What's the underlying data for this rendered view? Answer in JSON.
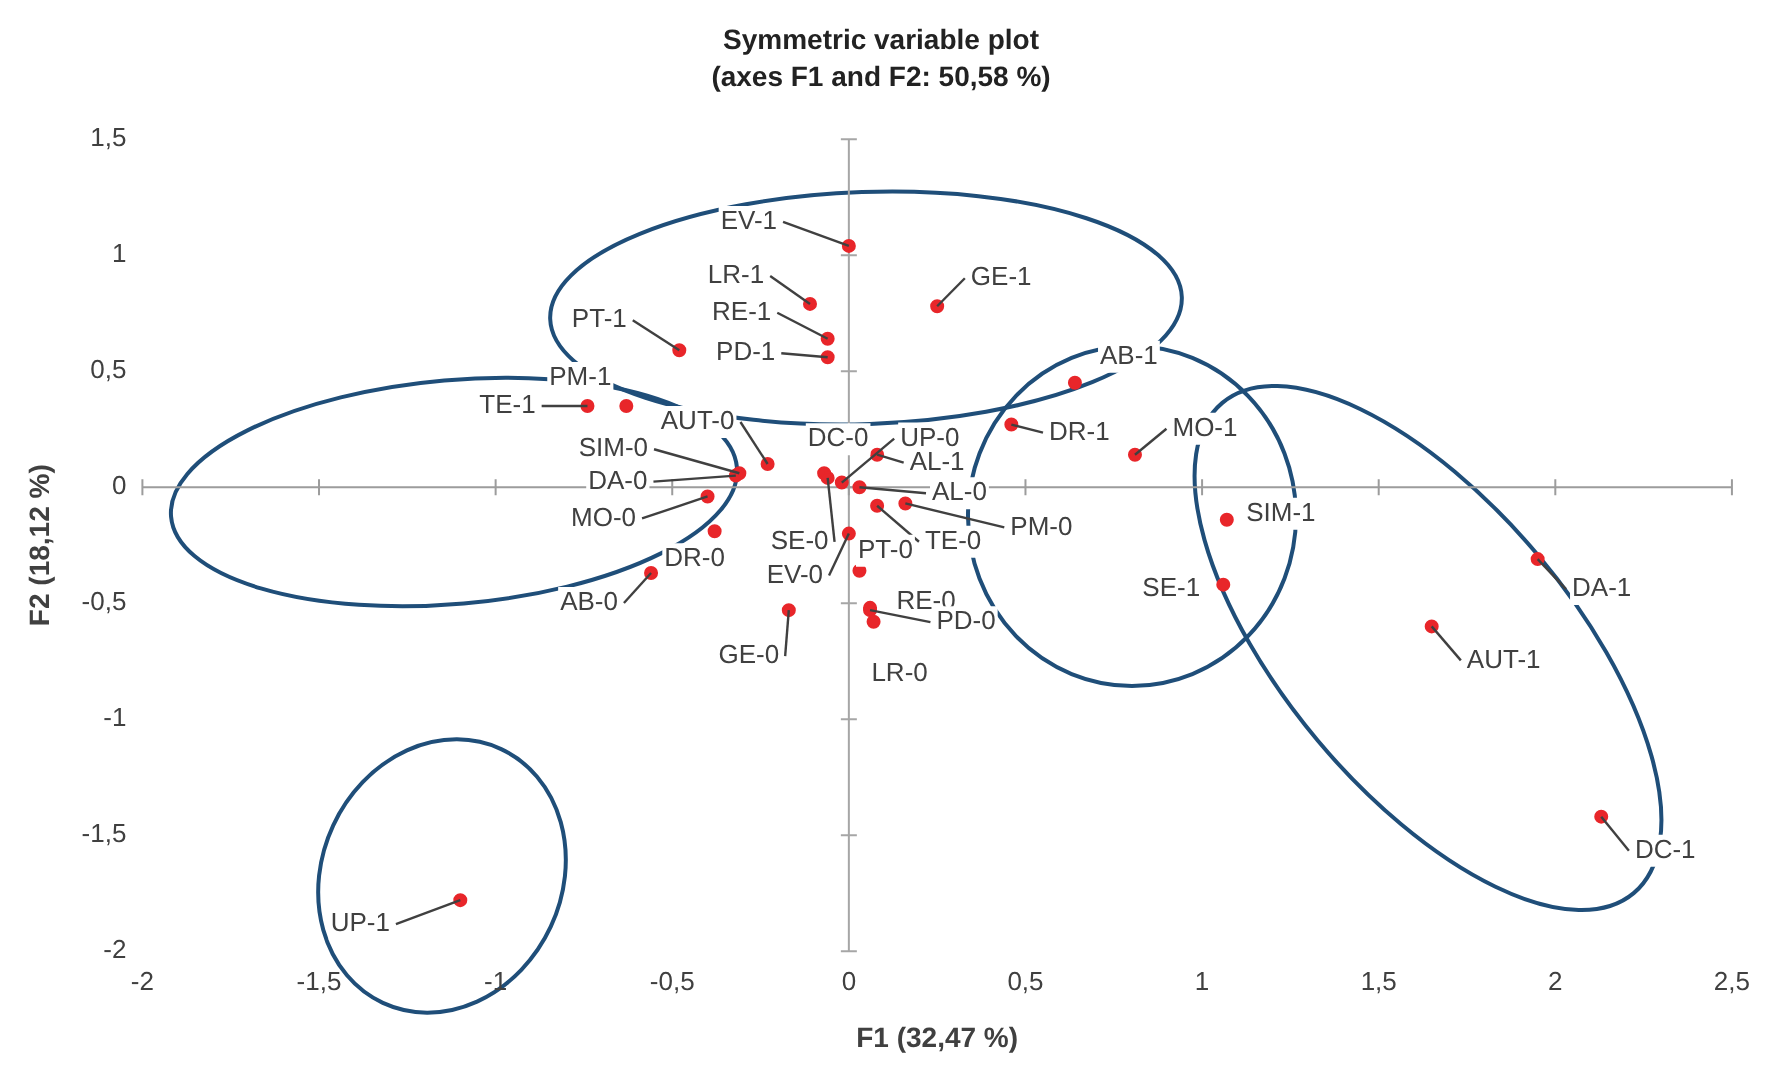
{
  "chart_data": {
    "type": "scatter",
    "title": "Symmetric variable plot",
    "subtitle": "(axes F1 and F2: 50,58 %)",
    "xlabel": "F1 (32,47 %)",
    "ylabel": "F2 (18,12 %)",
    "xlim": [
      -2,
      2.5
    ],
    "xticks": [
      -2,
      {
        "value": -1.5,
        "label": "-1,5"
      },
      -1,
      {
        "value": -0.5,
        "label": "-0,5"
      },
      0,
      {
        "value": 0.5,
        "label": "0,5"
      },
      1,
      {
        "value": 1.5,
        "label": "1,5"
      },
      2,
      {
        "value": 2.5,
        "label": "2,5"
      }
    ],
    "ylim": [
      -2,
      1.5
    ],
    "yticks": [
      -2,
      {
        "value": -1.5,
        "label": "-1,5"
      },
      -1,
      {
        "value": -0.5,
        "label": "-0,5"
      },
      0,
      {
        "value": 0.5,
        "label": "0,5"
      },
      1,
      {
        "value": 1.5,
        "label": "1,5"
      }
    ],
    "grid": false,
    "legend": false,
    "marker": "circle",
    "ref_lines": [
      {
        "axis": "x",
        "value": 0,
        "color": "#a6a6a6"
      },
      {
        "axis": "y",
        "value": 0,
        "color": "#9c9c9c"
      }
    ],
    "series": [
      {
        "color": "#e8262a",
        "x": [
          0,
          0.25,
          -0.11,
          -0.06,
          -0.06,
          -0.48,
          -0.63,
          -0.74,
          -0.23,
          -0.31,
          -0.32,
          -0.4,
          -0.38,
          -0.56,
          -0.07,
          -0.06,
          -0.02,
          0.08,
          0.03,
          0.08,
          0.16,
          0,
          0.03,
          0.06,
          0.06,
          0.07,
          -0.17,
          0.64,
          0.46,
          0.81,
          1.07,
          1.06,
          1.95,
          1.65,
          2.13,
          -1.1
        ],
        "values": [
          1.04,
          0.78,
          0.79,
          0.64,
          0.56,
          0.59,
          0.35,
          0.35,
          0.1,
          0.06,
          0.05,
          -0.04,
          -0.19,
          -0.37,
          0.06,
          0.04,
          0.02,
          0.14,
          0,
          -0.08,
          -0.07,
          -0.2,
          -0.36,
          -0.52,
          -0.53,
          -0.58,
          -0.53,
          0.45,
          0.27,
          0.14,
          -0.14,
          -0.42,
          -0.31,
          -0.6,
          -1.42,
          -1.78
        ]
      }
    ],
    "annotations": [
      {
        "text": "EV-1",
        "x": 0,
        "y": 1.04
      },
      {
        "text": "GE-1",
        "x": 0.25,
        "y": 0.78
      },
      {
        "text": "LR-1",
        "x": -0.11,
        "y": 0.79
      },
      {
        "text": "RE-1",
        "x": -0.06,
        "y": 0.64
      },
      {
        "text": "PD-1",
        "x": -0.06,
        "y": 0.56
      },
      {
        "text": "PT-1",
        "x": -0.48,
        "y": 0.59
      },
      {
        "text": "PM-1",
        "x": -0.63,
        "y": 0.35
      },
      {
        "text": "TE-1",
        "x": -0.74,
        "y": 0.35
      },
      {
        "text": "AUT-0",
        "x": -0.23,
        "y": 0.1
      },
      {
        "text": "SIM-0",
        "x": -0.31,
        "y": 0.06
      },
      {
        "text": "DA-0",
        "x": -0.32,
        "y": 0.05
      },
      {
        "text": "MO-0",
        "x": -0.4,
        "y": -0.04
      },
      {
        "text": "DR-0",
        "x": -0.38,
        "y": -0.19
      },
      {
        "text": "AB-0",
        "x": -0.56,
        "y": -0.37
      },
      {
        "text": "DC-0",
        "x": -0.07,
        "y": 0.06
      },
      {
        "text": "SE-0",
        "x": -0.06,
        "y": 0.04
      },
      {
        "text": "UP-0",
        "x": -0.02,
        "y": 0.02
      },
      {
        "text": "AL-1",
        "x": 0.08,
        "y": 0.14
      },
      {
        "text": "AL-0",
        "x": 0.03,
        "y": 0
      },
      {
        "text": "TE-0",
        "x": 0.08,
        "y": -0.08
      },
      {
        "text": "PM-0",
        "x": 0.16,
        "y": -0.07
      },
      {
        "text": "EV-0",
        "x": 0,
        "y": -0.2
      },
      {
        "text": "PT-0",
        "x": 0.03,
        "y": -0.36
      },
      {
        "text": "RE-0",
        "x": 0.06,
        "y": -0.52
      },
      {
        "text": "PD-0",
        "x": 0.06,
        "y": -0.53
      },
      {
        "text": "LR-0",
        "x": 0.07,
        "y": -0.58
      },
      {
        "text": "GE-0",
        "x": -0.17,
        "y": -0.53
      },
      {
        "text": "AB-1",
        "x": 0.64,
        "y": 0.45
      },
      {
        "text": "DR-1",
        "x": 0.46,
        "y": 0.27
      },
      {
        "text": "MO-1",
        "x": 0.81,
        "y": 0.14
      },
      {
        "text": "SIM-1",
        "x": 1.07,
        "y": -0.14
      },
      {
        "text": "SE-1",
        "x": 1.06,
        "y": -0.42
      },
      {
        "text": "DA-1",
        "x": 1.95,
        "y": -0.31
      },
      {
        "text": "AUT-1",
        "x": 1.65,
        "y": -0.6
      },
      {
        "text": "DC-1",
        "x": 2.13,
        "y": -1.42
      },
      {
        "text": "UP-1",
        "x": -1.1,
        "y": -1.78
      }
    ]
  }
}
